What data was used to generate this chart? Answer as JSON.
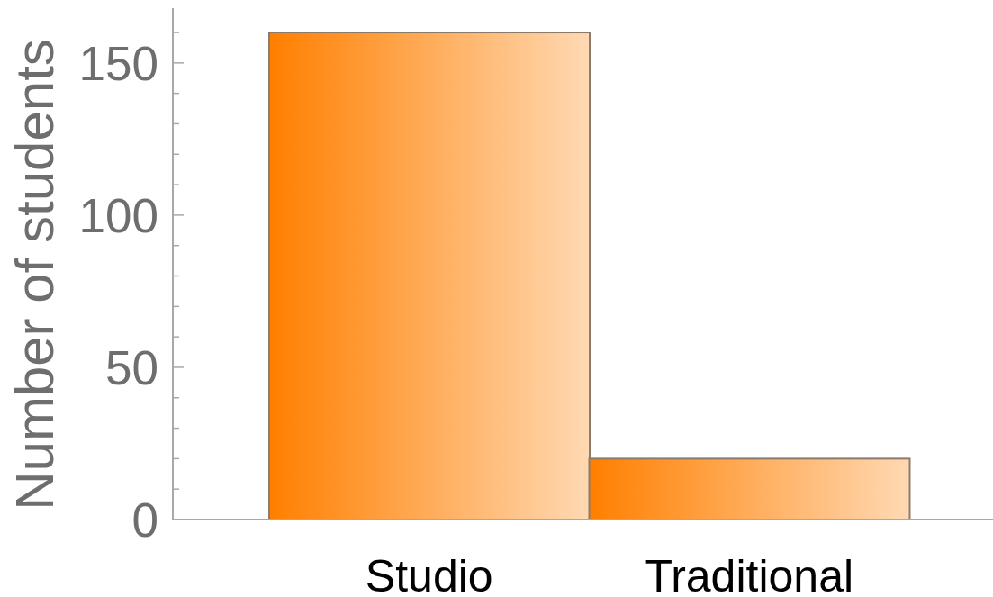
{
  "chart_data": {
    "type": "bar",
    "ylabel": "Number of students",
    "categories": [
      "Studio",
      "Traditional"
    ],
    "values": [
      160,
      20
    ],
    "color": "#ffac59",
    "ylim": [
      0,
      168
    ],
    "yticks": [
      0,
      {
        "value": 10,
        "label": null
      },
      {
        "value": 20,
        "label": null
      },
      {
        "value": 30,
        "label": null
      },
      {
        "value": 40,
        "label": null
      },
      50,
      {
        "value": 60,
        "label": null
      },
      {
        "value": 70,
        "label": null
      },
      {
        "value": 80,
        "label": null
      },
      {
        "value": 90,
        "label": null
      },
      100,
      {
        "value": 110,
        "label": null
      },
      {
        "value": 120,
        "label": null
      },
      {
        "value": 130,
        "label": null
      },
      {
        "value": 140,
        "label": null
      },
      150,
      {
        "value": 160,
        "label": null
      }
    ]
  }
}
